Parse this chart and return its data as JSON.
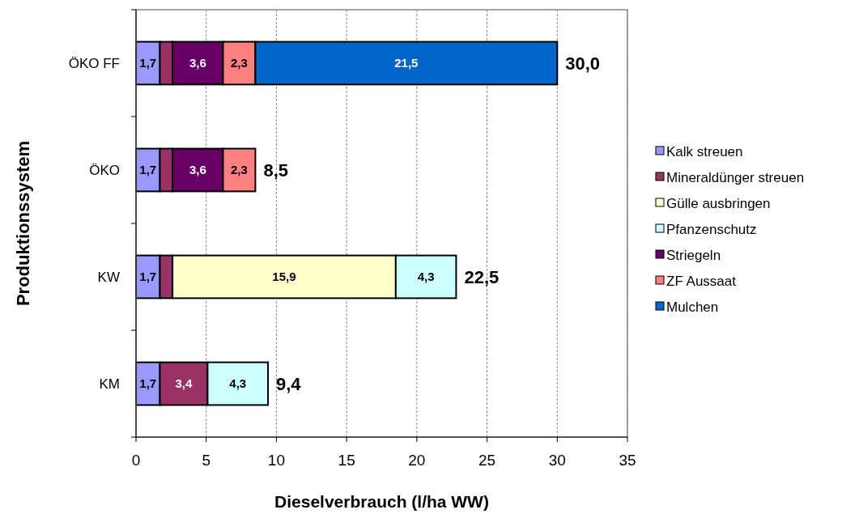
{
  "chart_data": {
    "type": "bar",
    "orientation": "horizontal",
    "stacked": true,
    "xlabel": "Dieselverbrauch (l/ha WW)",
    "ylabel": "Produktionssystem",
    "categories": [
      "ÖKO FF",
      "ÖKO",
      "KW",
      "KM"
    ],
    "series": [
      {
        "name": "Kalk streuen",
        "color": "#9999ff",
        "values": [
          1.7,
          1.7,
          1.7,
          1.7
        ],
        "value_labels": [
          "1,7",
          "1,7",
          "1,7",
          "1,7"
        ]
      },
      {
        "name": "Mineraldünger streuen",
        "color": "#993366",
        "values": [
          0.9,
          0.9,
          0.9,
          3.4
        ],
        "value_labels": [
          null,
          null,
          null,
          "3,4"
        ]
      },
      {
        "name": "Gülle ausbringen",
        "color": "#ffffcc",
        "values": [
          null,
          null,
          15.9,
          null
        ],
        "value_labels": [
          null,
          null,
          "15,9",
          null
        ]
      },
      {
        "name": "Pfanzenschutz",
        "color": "#ccffff",
        "values": [
          null,
          null,
          4.3,
          4.3
        ],
        "value_labels": [
          null,
          null,
          "4,3",
          "4,3"
        ]
      },
      {
        "name": "Striegeln",
        "color": "#660066",
        "values": [
          3.6,
          3.6,
          null,
          null
        ],
        "value_labels": [
          "3,6",
          "3,6",
          null,
          null
        ]
      },
      {
        "name": "ZF Aussaat",
        "color": "#ff8080",
        "values": [
          2.3,
          2.3,
          null,
          null
        ],
        "value_labels": [
          "2,3",
          "2,3",
          null,
          null
        ]
      },
      {
        "name": "Mulchen",
        "color": "#0066cc",
        "values": [
          21.5,
          null,
          null,
          null
        ],
        "value_labels": [
          "21,5",
          null,
          null,
          null
        ]
      }
    ],
    "totals": [
      "30,0",
      "8,5",
      "22,5",
      "9,4"
    ],
    "xlim": [
      0,
      35
    ],
    "xticks": [
      0,
      5,
      10,
      15,
      20,
      25,
      30,
      35
    ],
    "grid": "x",
    "legend": "right"
  }
}
